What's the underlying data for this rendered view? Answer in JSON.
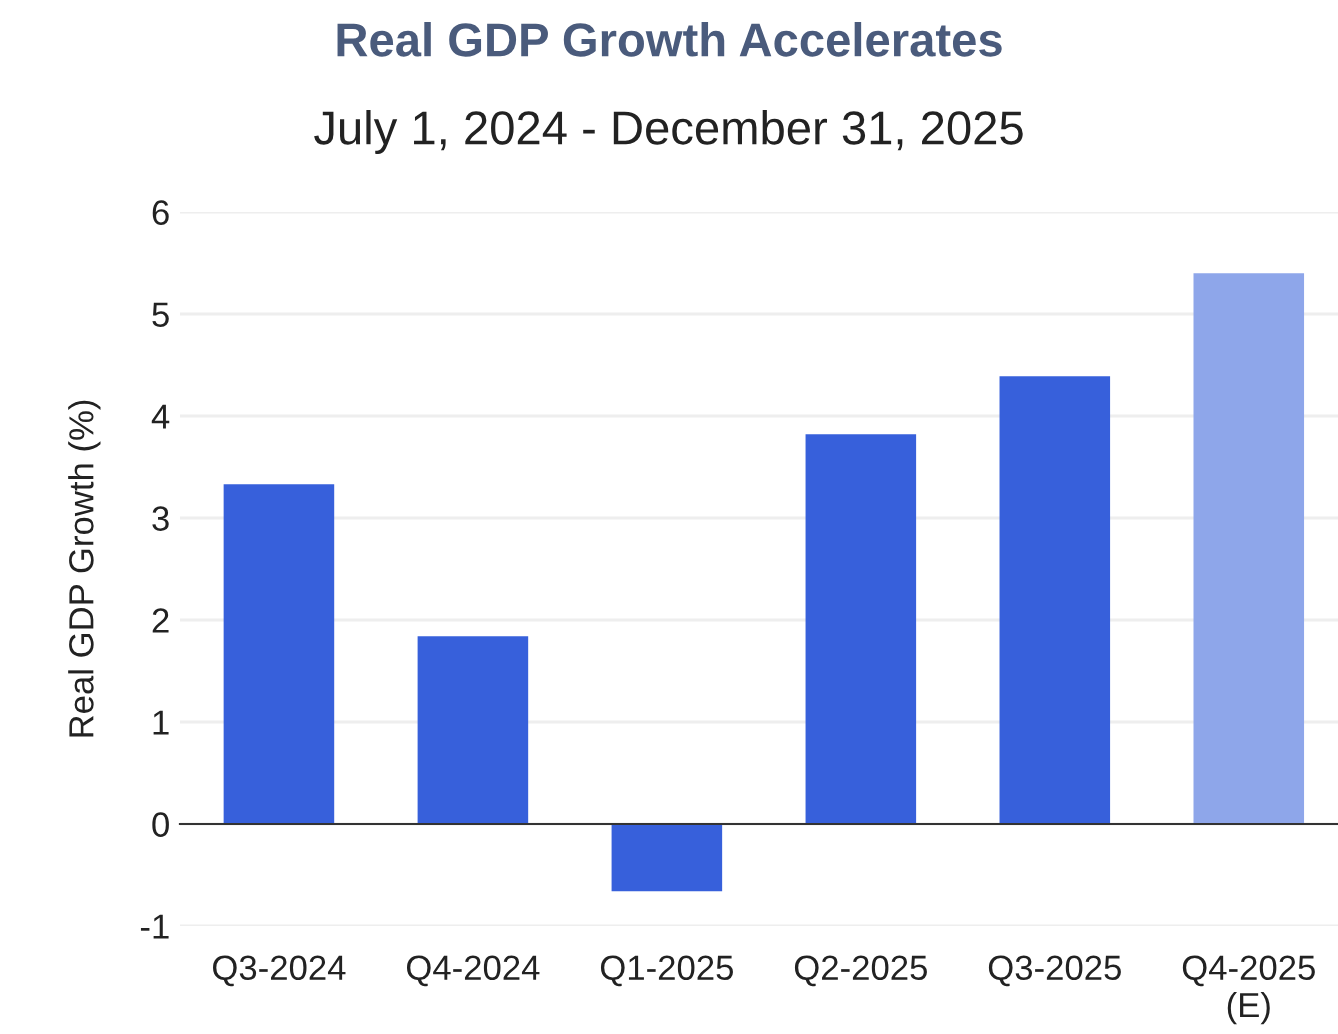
{
  "chart_data": {
    "type": "bar",
    "title": "Real GDP Growth Accelerates",
    "subtitle": "July 1, 2024 - December 31, 2025",
    "ylabel": "Real GDP Growth (%)",
    "categories": [
      "Q3-2024",
      "Q4-2024",
      "Q1-2025",
      "Q2-2025",
      "Q3-2025",
      "Q4-2025\n(E)"
    ],
    "values": [
      3.33,
      1.84,
      -0.66,
      3.82,
      4.39,
      5.4
    ],
    "colors": [
      "#3760db",
      "#3760db",
      "#3760db",
      "#3760db",
      "#3760db",
      "#8ea6ea"
    ],
    "ylim": [
      -1,
      6
    ],
    "yticks": [
      -1,
      0,
      1,
      2,
      3,
      4,
      5,
      6
    ],
    "grid": "y"
  }
}
